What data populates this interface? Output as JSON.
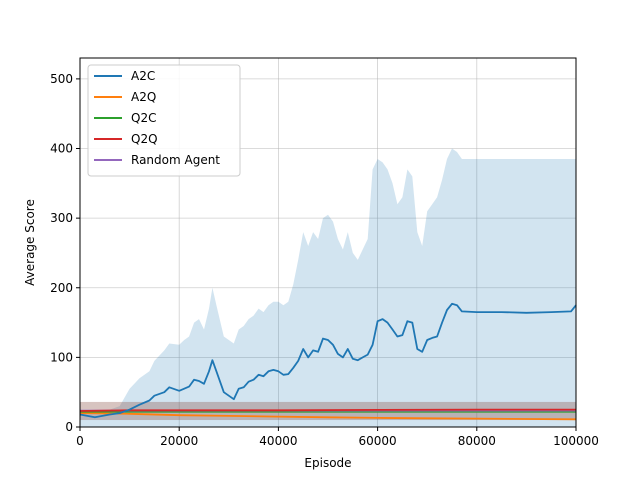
{
  "chart_data": {
    "type": "line",
    "xlabel": "Episode",
    "ylabel": "Average Score",
    "xlim": [
      0,
      100000
    ],
    "ylim": [
      0,
      530
    ],
    "x_ticks": [
      0,
      20000,
      40000,
      60000,
      80000,
      100000
    ],
    "x_tick_labels": [
      "0",
      "20000",
      "40000",
      "60000",
      "80000",
      "100000"
    ],
    "y_ticks": [
      0,
      100,
      200,
      300,
      400,
      500
    ],
    "y_tick_labels": [
      "0",
      "100",
      "200",
      "300",
      "400",
      "500"
    ],
    "grid": true,
    "legend_position": "top-left",
    "series": [
      {
        "name": "A2C",
        "color": "#1f77b4",
        "x": [
          0,
          3000,
          6000,
          8000,
          10000,
          12000,
          14000,
          15000,
          17000,
          18000,
          20000,
          21000,
          22000,
          23000,
          24000,
          25000,
          26000,
          26700,
          27500,
          29000,
          31000,
          32000,
          33000,
          34000,
          35000,
          36000,
          37000,
          38000,
          39000,
          40000,
          41000,
          42000,
          43000,
          44000,
          45000,
          46000,
          47000,
          48000,
          49000,
          50000,
          51000,
          52000,
          53000,
          54000,
          55000,
          56000,
          57000,
          58000,
          59000,
          60000,
          61000,
          62000,
          63000,
          64000,
          65000,
          66000,
          67000,
          68000,
          69000,
          70000,
          71000,
          72000,
          73000,
          74000,
          75000,
          76000,
          77000,
          80000,
          85000,
          90000,
          95000,
          99000,
          100000
        ],
        "y": [
          18,
          14,
          18,
          20,
          25,
          32,
          38,
          45,
          50,
          57,
          52,
          55,
          58,
          68,
          66,
          62,
          80,
          96,
          80,
          50,
          40,
          55,
          57,
          65,
          68,
          75,
          73,
          80,
          82,
          80,
          75,
          76,
          85,
          95,
          112,
          100,
          110,
          108,
          127,
          125,
          118,
          105,
          100,
          112,
          98,
          96,
          100,
          104,
          118,
          152,
          155,
          150,
          140,
          130,
          132,
          152,
          150,
          112,
          108,
          125,
          128,
          130,
          150,
          168,
          177,
          175,
          166,
          165,
          165,
          164,
          165,
          166,
          175
        ],
        "band_lower": [
          0,
          0,
          0,
          0,
          0,
          0,
          0,
          0,
          0,
          0,
          0,
          0,
          0,
          0,
          0,
          0,
          0,
          0,
          0,
          0,
          0,
          0,
          0,
          0,
          0,
          0,
          0,
          0,
          0,
          0,
          0,
          0,
          0,
          0,
          0,
          0,
          0,
          0,
          0,
          0,
          0,
          0,
          0,
          0,
          0,
          0,
          0,
          0,
          0,
          0,
          0,
          0,
          0,
          0,
          0,
          0,
          0,
          0,
          0,
          0,
          0,
          0,
          0,
          0,
          0,
          0,
          0,
          0,
          0,
          0,
          0,
          0,
          0
        ],
        "band_upper": [
          25,
          22,
          25,
          30,
          55,
          70,
          80,
          95,
          110,
          120,
          118,
          125,
          130,
          150,
          155,
          140,
          170,
          200,
          175,
          130,
          120,
          140,
          145,
          155,
          160,
          170,
          165,
          175,
          180,
          180,
          175,
          180,
          205,
          240,
          280,
          260,
          280,
          270,
          300,
          305,
          295,
          270,
          255,
          280,
          250,
          240,
          255,
          270,
          370,
          385,
          380,
          370,
          350,
          320,
          330,
          370,
          360,
          280,
          260,
          310,
          320,
          330,
          355,
          385,
          400,
          395,
          385,
          385,
          385,
          385,
          385,
          385,
          385
        ]
      },
      {
        "name": "A2Q",
        "color": "#ff7f0e",
        "x": [
          0,
          10000,
          20000,
          30000,
          40000,
          50000,
          60000,
          70000,
          80000,
          90000,
          100000
        ],
        "y": [
          20,
          19,
          17,
          16,
          15,
          14,
          13,
          12.5,
          12,
          11.5,
          11
        ]
      },
      {
        "name": "Q2C",
        "color": "#2ca02c",
        "x": [
          0,
          20000,
          40000,
          60000,
          80000,
          100000
        ],
        "y": [
          22,
          22,
          22,
          22,
          22,
          22
        ]
      },
      {
        "name": "Q2Q",
        "color": "#d62728",
        "x": [
          0,
          10000,
          20000,
          40000,
          60000,
          80000,
          100000
        ],
        "y": [
          23,
          24,
          24,
          24,
          24.5,
          25,
          25
        ]
      },
      {
        "name": "Random Agent",
        "color": "#9467bd",
        "x": [
          0,
          20000,
          40000,
          60000,
          80000,
          100000
        ],
        "y": [
          23.5,
          23.5,
          23.5,
          23.5,
          23.5,
          23.5
        ]
      }
    ],
    "low_band": {
      "lower": 10,
      "upper": 36,
      "color": "#8c564b"
    }
  }
}
